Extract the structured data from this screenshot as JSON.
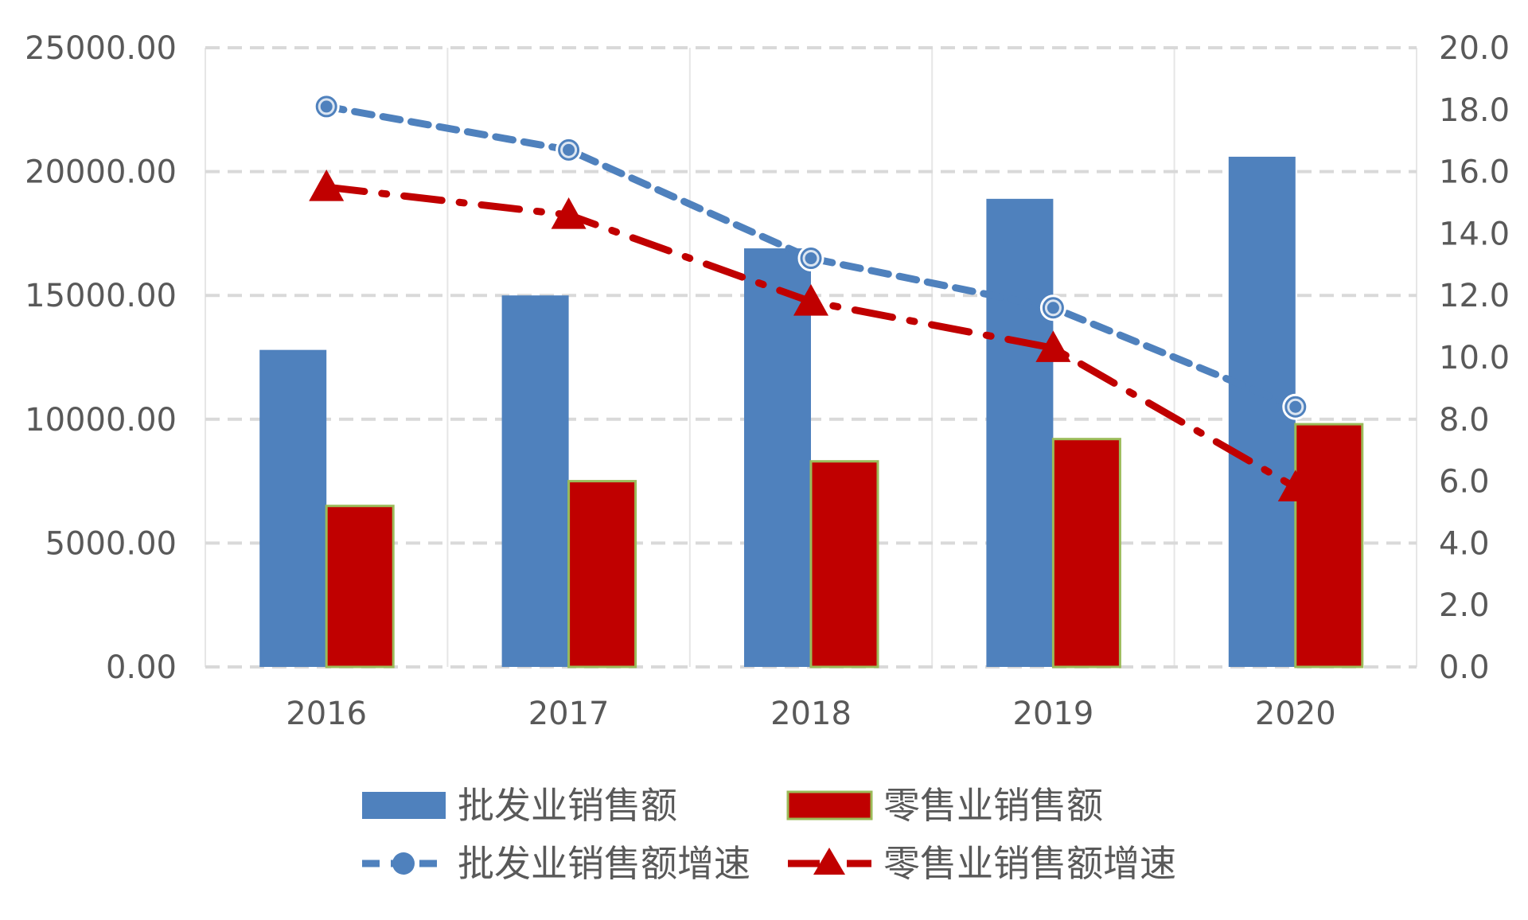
{
  "chart_data": {
    "type": "bar",
    "categories": [
      "2016",
      "2017",
      "2018",
      "2019",
      "2020"
    ],
    "series": [
      {
        "name": "批发业销售额",
        "kind": "bar",
        "axis": "left",
        "color": "#4f81bd",
        "values": [
          12800,
          15000,
          16900,
          18900,
          20600
        ]
      },
      {
        "name": "零售业销售额",
        "kind": "bar",
        "axis": "left",
        "color": "#c00000",
        "values": [
          6500,
          7500,
          8300,
          9200,
          9800
        ]
      },
      {
        "name": "批发业销售额增速",
        "kind": "line",
        "marker": "circle",
        "dash": "dashed",
        "axis": "right",
        "color": "#4f81bd",
        "values": [
          18.1,
          16.7,
          13.2,
          11.6,
          8.4
        ]
      },
      {
        "name": "零售业销售额增速",
        "kind": "line",
        "marker": "triangle",
        "dash": "dash-dot",
        "axis": "right",
        "color": "#c00000",
        "values": [
          15.5,
          14.6,
          11.8,
          10.3,
          5.8
        ]
      }
    ],
    "y_left": {
      "min": 0,
      "max": 25000,
      "step": 5000,
      "ticks": [
        "0.00",
        "5000.00",
        "10000.00",
        "15000.00",
        "20000.00",
        "25000.00"
      ]
    },
    "y_right": {
      "min": 0,
      "max": 20,
      "step": 2,
      "ticks": [
        "0.0",
        "2.0",
        "4.0",
        "6.0",
        "8.0",
        "10.0",
        "12.0",
        "14.0",
        "16.0",
        "18.0",
        "20.0"
      ]
    },
    "grid": true,
    "legend_position": "bottom",
    "title": "",
    "xlabel": "",
    "ylabel": ""
  }
}
